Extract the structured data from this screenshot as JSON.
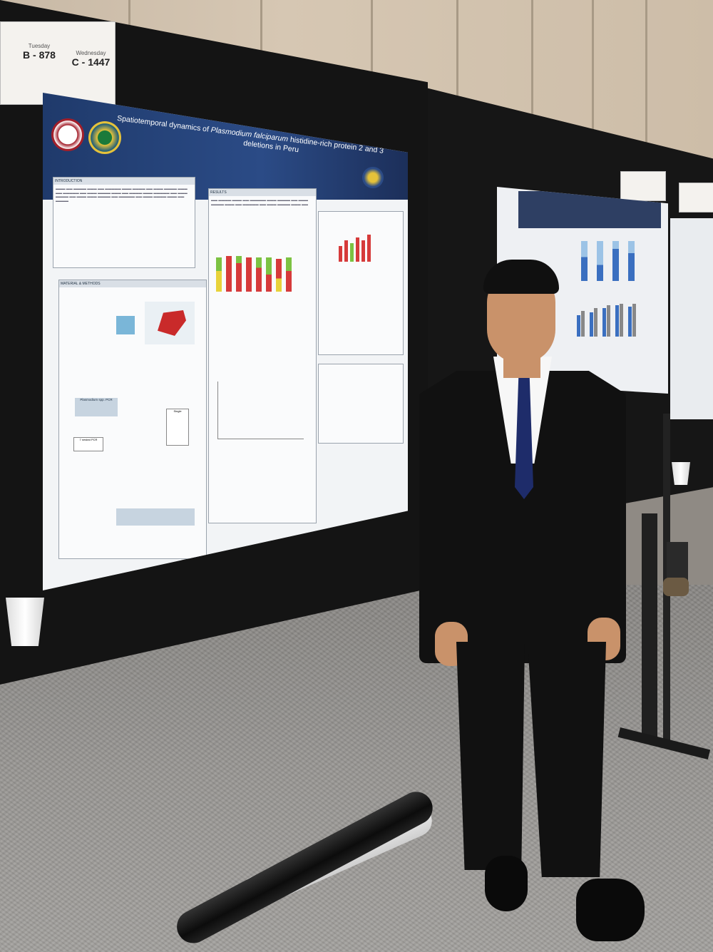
{
  "scene": {
    "description_labels": {
      "poster_title_line1": "Spatiotemporal dynamics of",
      "poster_title_italic": "Plasmodium falciparum",
      "poster_title_line2": "histidine-rich protein 2 and 3",
      "poster_title_line3": "deletions in Peru"
    },
    "board_labels": [
      {
        "day": "Tuesday",
        "code": "B - 878"
      },
      {
        "day": "Wednesday",
        "code": "C - 1447"
      }
    ],
    "poster_sections": {
      "introduction": "INTRODUCTION",
      "methods": "MATERIAL & METHODS",
      "results": "RESULTS"
    },
    "flow_labels": {
      "pfhrp": "Plasmodium spp. PCR",
      "tetra": "7 nested PCR",
      "nopf": "Single"
    },
    "colors": {
      "poster_header": "#1f3a6b",
      "bar_green": "#7cc242",
      "bar_red": "#d63a3a",
      "bar_yellow": "#e8d23a",
      "bar_blue": "#3a6fc0"
    }
  }
}
